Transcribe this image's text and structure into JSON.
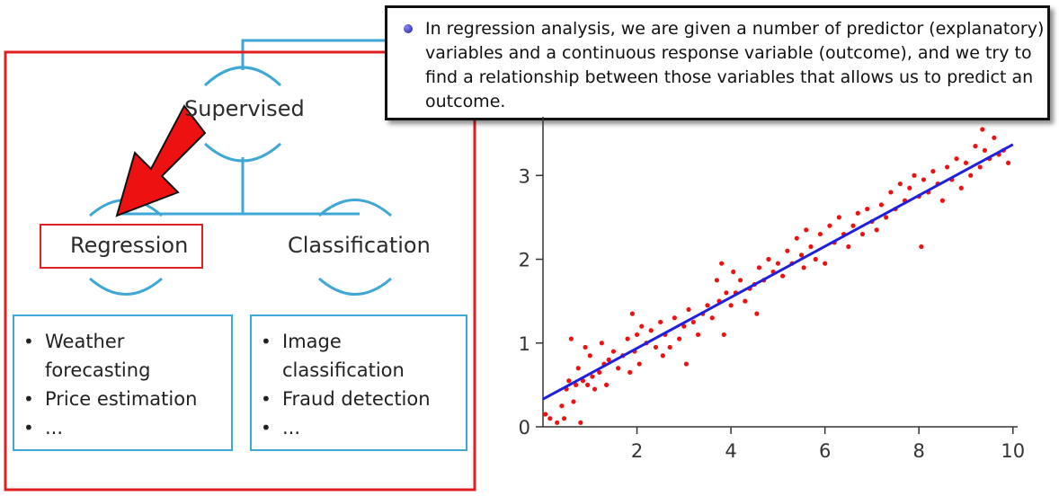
{
  "diagram": {
    "root_label": "Supervised",
    "left_label": "Regression",
    "right_label": "Classification",
    "regression_examples": [
      "Weather forecasting",
      "Price estimation",
      "..."
    ],
    "classification_examples": [
      "Image classification",
      "Fraud detection",
      "..."
    ],
    "colors": {
      "frame": "#e02020",
      "connector": "#3fa7d6",
      "arrow": "#ee1111"
    }
  },
  "callout": {
    "text": "In regression analysis, we are given a number of predictor (explanatory) variables and a continuous response variable (outcome), and we try to find a relationship between those variables that allows us to predict an outcome."
  },
  "chart_data": {
    "type": "scatter",
    "title": "",
    "xlabel": "",
    "ylabel": "",
    "x_ticks": [
      "2",
      "4",
      "6",
      "8",
      "10"
    ],
    "y_ticks": [
      "0",
      "1",
      "2",
      "3"
    ],
    "xlim": [
      0,
      10.1
    ],
    "ylim": [
      0,
      3.7
    ],
    "grid": false,
    "fit_line": {
      "x": [
        0,
        10
      ],
      "y": [
        0.33,
        3.37
      ],
      "color": "#1f1fe0"
    },
    "points_color": "#ee1111",
    "points": [
      [
        0.05,
        0.15
      ],
      [
        0.15,
        0.1
      ],
      [
        0.3,
        0.05
      ],
      [
        0.4,
        0.25
      ],
      [
        0.45,
        0.1
      ],
      [
        0.5,
        0.45
      ],
      [
        0.55,
        0.55
      ],
      [
        0.6,
        1.05
      ],
      [
        0.65,
        0.3
      ],
      [
        0.7,
        0.5
      ],
      [
        0.75,
        0.7
      ],
      [
        0.8,
        0.05
      ],
      [
        0.85,
        0.55
      ],
      [
        0.9,
        0.95
      ],
      [
        0.95,
        0.5
      ],
      [
        1.0,
        0.85
      ],
      [
        1.05,
        0.6
      ],
      [
        1.1,
        0.45
      ],
      [
        1.2,
        0.65
      ],
      [
        1.25,
        1.0
      ],
      [
        1.3,
        0.75
      ],
      [
        1.35,
        0.5
      ],
      [
        1.4,
        0.8
      ],
      [
        1.5,
        0.9
      ],
      [
        1.6,
        0.7
      ],
      [
        1.7,
        0.85
      ],
      [
        1.8,
        1.05
      ],
      [
        1.85,
        0.65
      ],
      [
        1.9,
        1.35
      ],
      [
        1.95,
        0.9
      ],
      [
        2.0,
        1.1
      ],
      [
        2.05,
        0.75
      ],
      [
        2.1,
        1.2
      ],
      [
        2.2,
        1.0
      ],
      [
        2.3,
        1.15
      ],
      [
        2.4,
        0.95
      ],
      [
        2.5,
        1.25
      ],
      [
        2.55,
        0.85
      ],
      [
        2.6,
        1.1
      ],
      [
        2.7,
        0.95
      ],
      [
        2.8,
        1.3
      ],
      [
        2.9,
        1.05
      ],
      [
        3.0,
        1.2
      ],
      [
        3.05,
        0.75
      ],
      [
        3.1,
        1.4
      ],
      [
        3.2,
        1.25
      ],
      [
        3.3,
        1.1
      ],
      [
        3.4,
        1.35
      ],
      [
        3.5,
        1.45
      ],
      [
        3.6,
        1.3
      ],
      [
        3.7,
        1.75
      ],
      [
        3.75,
        1.5
      ],
      [
        3.8,
        1.95
      ],
      [
        3.85,
        1.1
      ],
      [
        3.9,
        1.6
      ],
      [
        4.0,
        1.45
      ],
      [
        4.05,
        1.85
      ],
      [
        4.1,
        1.6
      ],
      [
        4.2,
        1.75
      ],
      [
        4.3,
        1.5
      ],
      [
        4.4,
        1.65
      ],
      [
        4.5,
        1.7
      ],
      [
        4.55,
        1.35
      ],
      [
        4.6,
        1.9
      ],
      [
        4.7,
        1.75
      ],
      [
        4.8,
        2.0
      ],
      [
        4.9,
        1.85
      ],
      [
        5.0,
        1.95
      ],
      [
        5.1,
        1.8
      ],
      [
        5.2,
        2.1
      ],
      [
        5.3,
        1.95
      ],
      [
        5.4,
        2.25
      ],
      [
        5.5,
        2.05
      ],
      [
        5.55,
        1.9
      ],
      [
        5.6,
        2.35
      ],
      [
        5.7,
        2.15
      ],
      [
        5.8,
        2.0
      ],
      [
        5.9,
        2.3
      ],
      [
        6.0,
        1.95
      ],
      [
        6.1,
        2.4
      ],
      [
        6.2,
        2.2
      ],
      [
        6.3,
        2.5
      ],
      [
        6.4,
        2.3
      ],
      [
        6.5,
        2.15
      ],
      [
        6.6,
        2.4
      ],
      [
        6.7,
        2.55
      ],
      [
        6.8,
        2.3
      ],
      [
        6.9,
        2.6
      ],
      [
        7.0,
        2.45
      ],
      [
        7.1,
        2.35
      ],
      [
        7.2,
        2.65
      ],
      [
        7.3,
        2.5
      ],
      [
        7.4,
        2.8
      ],
      [
        7.5,
        2.6
      ],
      [
        7.6,
        2.9
      ],
      [
        7.7,
        2.7
      ],
      [
        7.8,
        2.85
      ],
      [
        7.9,
        3.0
      ],
      [
        8.0,
        2.75
      ],
      [
        8.05,
        2.15
      ],
      [
        8.1,
        2.95
      ],
      [
        8.2,
        2.8
      ],
      [
        8.3,
        3.05
      ],
      [
        8.4,
        2.9
      ],
      [
        8.5,
        2.7
      ],
      [
        8.6,
        3.1
      ],
      [
        8.7,
        2.95
      ],
      [
        8.8,
        3.2
      ],
      [
        8.9,
        2.85
      ],
      [
        9.0,
        3.15
      ],
      [
        9.1,
        3.0
      ],
      [
        9.2,
        3.35
      ],
      [
        9.3,
        3.1
      ],
      [
        9.35,
        3.55
      ],
      [
        9.4,
        3.3
      ],
      [
        9.5,
        3.2
      ],
      [
        9.6,
        3.45
      ],
      [
        9.7,
        3.25
      ],
      [
        9.8,
        3.3
      ],
      [
        9.9,
        3.15
      ]
    ]
  }
}
